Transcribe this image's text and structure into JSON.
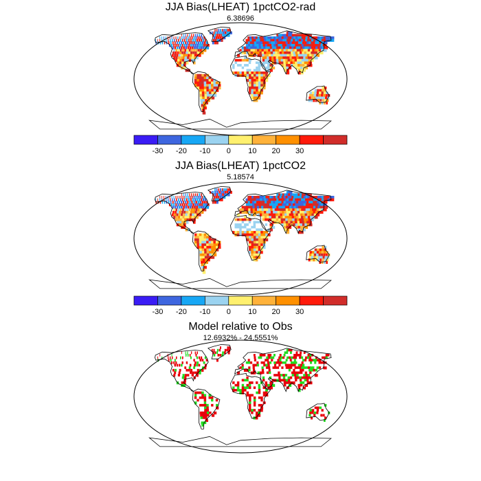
{
  "colorbar": {
    "colors": [
      "#3a1cf5",
      "#3e66df",
      "#17a7f5",
      "#9bd3f0",
      "#fff06e",
      "#ffb23a",
      "#ff9000",
      "#ff1a0a",
      "#d12d2a"
    ],
    "labels": [
      "-30",
      "-20",
      "-10",
      "0",
      "10",
      "20",
      "30"
    ]
  },
  "panels": [
    {
      "title": "JJA Bias(LHEAT) 1pctCO2-rad",
      "subtitle": "6.38696",
      "type": "bias",
      "has_colorbar": true
    },
    {
      "title": "JJA Bias(LHEAT) 1pctCO2",
      "subtitle": "5.18574",
      "type": "bias",
      "has_colorbar": true
    },
    {
      "title": "Model relative to Obs",
      "subtitle": "12.6932% - 24.5551%",
      "type": "relative",
      "has_colorbar": false
    }
  ],
  "relative_colors": [
    "#e8000b",
    "#22dd22"
  ]
}
